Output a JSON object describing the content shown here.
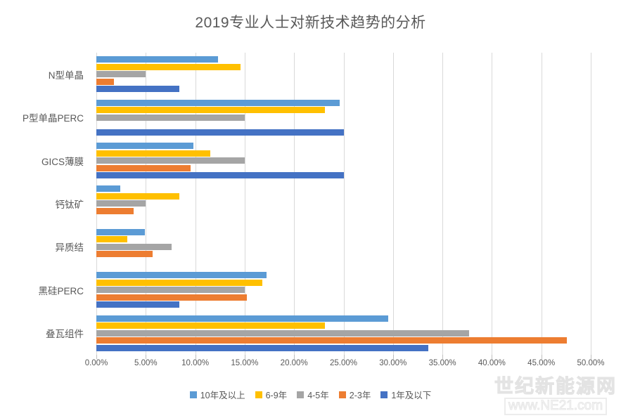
{
  "watermark": {
    "site_name": "世纪新能源网",
    "site_url": "www.NE21.com"
  },
  "chart_data": {
    "type": "bar",
    "orientation": "horizontal",
    "title": "2019专业人士对新技术趋势的分析",
    "categories": [
      "N型单晶",
      "P型单晶PERC",
      "GICS薄膜",
      "钙钛矿",
      "异质结",
      "黑硅PERC",
      "叠瓦组件"
    ],
    "series": [
      {
        "name": "10年及以上",
        "color": "#5B9BD5",
        "values": [
          12.3,
          24.6,
          9.8,
          2.4,
          4.9,
          17.2,
          29.5
        ]
      },
      {
        "name": "6-9年",
        "color": "#FFC000",
        "values": [
          14.6,
          23.1,
          11.5,
          8.4,
          3.1,
          16.8,
          23.1
        ]
      },
      {
        "name": "4-5年",
        "color": "#A5A5A5",
        "values": [
          5.0,
          15.0,
          15.0,
          5.0,
          7.6,
          15.0,
          37.7
        ]
      },
      {
        "name": "2-3年",
        "color": "#ED7D31",
        "values": [
          1.8,
          0,
          9.5,
          3.8,
          5.7,
          15.2,
          47.6
        ]
      },
      {
        "name": "1年及以下",
        "color": "#4472C4",
        "values": [
          8.4,
          25.0,
          25.0,
          0,
          0,
          8.4,
          33.6
        ]
      }
    ],
    "x_axis": {
      "min": 0,
      "max": 50,
      "tick_step": 5,
      "tick_labels": [
        "0.00%",
        "5.00%",
        "10.00%",
        "15.00%",
        "20.00%",
        "25.00%",
        "30.00%",
        "35.00%",
        "40.00%",
        "45.00%",
        "50.00%"
      ]
    },
    "y_axis_side": "left",
    "legend_position": "bottom",
    "gridlines": "vertical",
    "background": "#FFFFFF",
    "grid_color": "#D9D9D9",
    "text_color": "#595959"
  }
}
